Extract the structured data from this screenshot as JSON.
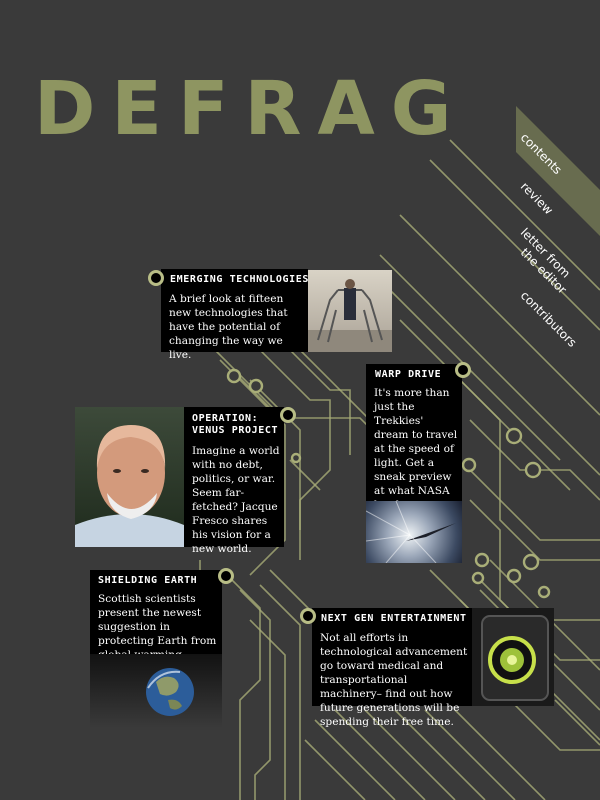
{
  "magazine": {
    "title": "DEFRAG"
  },
  "nav": {
    "items": [
      {
        "label": "contents"
      },
      {
        "label": "review"
      },
      {
        "label": "letter from"
      },
      {
        "label": "the editor"
      },
      {
        "label": "contributors"
      }
    ]
  },
  "articles": {
    "emerging": {
      "title": "EMERGING TECHNOLOGIES",
      "body": "A brief look at fifteen new technologies that have the potential of changing the way we live."
    },
    "warp": {
      "title": "WARP DRIVE",
      "body": "It's more than just the Trekkies' dream to travel at the speed of light. Get a sneak preview at what NASA has been working on."
    },
    "venus": {
      "title_line1": "OPERATION:",
      "title_line2": "VENUS PROJECT",
      "body": "Imagine a world with no debt, politics, or war. Seem far-fetched? Jacque Fresco shares his vision for a new world."
    },
    "shielding": {
      "title": "SHIELDING EARTH",
      "body": "Scottish scientists present the newest suggestion in protecting Earth from global warming."
    },
    "nextgen": {
      "title": "NEXT GEN ENTERTAINMENT",
      "body": "Not all efforts in technological advancement go toward medical and transportational machinery– find out how future generations will be spending their free time."
    }
  },
  "colors": {
    "background": "#3a3a3a",
    "accent": "#8e9561",
    "circuit": "#a9ae78"
  }
}
